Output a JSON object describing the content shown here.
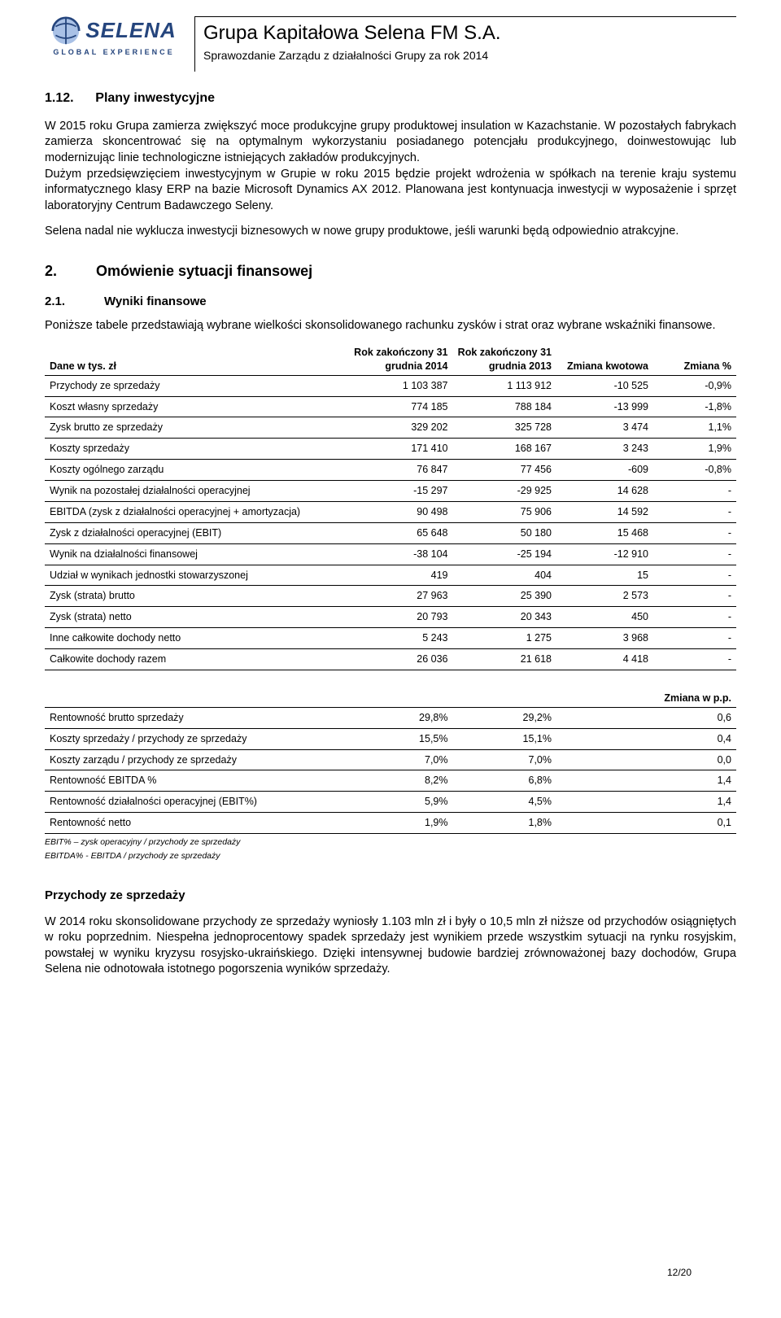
{
  "header": {
    "logo_text": "SELENA",
    "logo_sub": "GLOBAL EXPERIENCE",
    "title": "Grupa Kapitałowa Selena FM S.A.",
    "subtitle": "Sprawozdanie Zarządu z działalności Grupy za rok 2014",
    "logo_colors": {
      "blue": "#25457d",
      "light": "#a9c1e6"
    }
  },
  "s112": {
    "num": "1.12.",
    "title": "Plany inwestycyjne",
    "p1": "W 2015 roku Grupa zamierza zwiększyć moce produkcyjne grupy produktowej insulation w Kazachstanie. W pozostałych fabrykach zamierza skoncentrować się na optymalnym wykorzystaniu posiadanego potencjału produkcyjnego, doinwestowując lub modernizując linie technologiczne istniejących zakładów produkcyjnych.",
    "p2": "Dużym przedsięwzięciem inwestycyjnym w Grupie w roku 2015 będzie projekt wdrożenia w spółkach na terenie kraju systemu informatycznego klasy ERP na bazie Microsoft Dynamics AX 2012. Planowana jest kontynuacja inwestycji w wyposażenie i sprzęt laboratoryjny Centrum Badawczego Seleny.",
    "p3": "Selena nadal nie wyklucza inwestycji biznesowych w nowe grupy produktowe, jeśli warunki będą odpowiednio atrakcyjne."
  },
  "s2": {
    "num": "2.",
    "title": "Omówienie sytuacji finansowej"
  },
  "s21": {
    "num": "2.1.",
    "title": "Wyniki finansowe",
    "intro": "Poniższe tabele przedstawiają wybrane wielkości skonsolidowanego rachunku zysków i strat oraz wybrane wskaźniki finansowe."
  },
  "table1": {
    "unit_label": "Dane w tys. zł",
    "cols": [
      "Rok zakończony 31 grudnia 2014",
      "Rok zakończony 31 grudnia 2013",
      "Zmiana kwotowa",
      "Zmiana %"
    ],
    "rows": [
      {
        "label": "Przychody ze sprzedaży",
        "v": [
          "1 103 387",
          "1 113 912",
          "-10 525",
          "-0,9%"
        ]
      },
      {
        "label": "Koszt własny sprzedaży",
        "v": [
          "774 185",
          "788 184",
          "-13 999",
          "-1,8%"
        ]
      },
      {
        "label": "Zysk brutto ze sprzedaży",
        "v": [
          "329 202",
          "325 728",
          "3 474",
          "1,1%"
        ]
      },
      {
        "label": "Koszty sprzedaży",
        "v": [
          "171 410",
          "168 167",
          "3 243",
          "1,9%"
        ]
      },
      {
        "label": "Koszty ogólnego zarządu",
        "v": [
          "76 847",
          "77 456",
          "-609",
          "-0,8%"
        ]
      },
      {
        "label": "Wynik na pozostałej działalności operacyjnej",
        "v": [
          "-15 297",
          "-29 925",
          "14 628",
          "-"
        ]
      },
      {
        "label": "EBITDA (zysk z działalności operacyjnej + amortyzacja)",
        "v": [
          "90 498",
          "75 906",
          "14 592",
          "-"
        ]
      },
      {
        "label": "Zysk z działalności operacyjnej (EBIT)",
        "v": [
          "65 648",
          "50 180",
          "15 468",
          "-"
        ]
      },
      {
        "label": "Wynik na działalności finansowej",
        "v": [
          "-38 104",
          "-25 194",
          "-12 910",
          "-"
        ]
      },
      {
        "label": "Udział w wynikach jednostki stowarzyszonej",
        "v": [
          "419",
          "404",
          "15",
          "-"
        ]
      },
      {
        "label": "Zysk (strata) brutto",
        "v": [
          "27 963",
          "25 390",
          "2 573",
          "-"
        ]
      },
      {
        "label": "Zysk (strata) netto",
        "v": [
          "20 793",
          "20 343",
          "450",
          "-"
        ]
      },
      {
        "label": "Inne całkowite dochody netto",
        "v": [
          "5 243",
          "1 275",
          "3 968",
          "-"
        ]
      },
      {
        "label": "Całkowite dochody razem",
        "v": [
          "26 036",
          "21 618",
          "4 418",
          "-"
        ]
      }
    ]
  },
  "table2": {
    "change_header": "Zmiana w p.p.",
    "rows": [
      {
        "label": "Rentowność brutto sprzedaży",
        "v": [
          "29,8%",
          "29,2%",
          "0,6"
        ]
      },
      {
        "label": "Koszty sprzedaży / przychody ze sprzedaży",
        "v": [
          "15,5%",
          "15,1%",
          "0,4"
        ]
      },
      {
        "label": "Koszty zarządu / przychody ze sprzedaży",
        "v": [
          "7,0%",
          "7,0%",
          "0,0"
        ]
      },
      {
        "label": "Rentowność EBITDA %",
        "v": [
          "8,2%",
          "6,8%",
          "1,4"
        ]
      },
      {
        "label": "Rentowność działalności operacyjnej (EBIT%)",
        "v": [
          "5,9%",
          "4,5%",
          "1,4"
        ]
      },
      {
        "label": "Rentowność netto",
        "v": [
          "1,9%",
          "1,8%",
          "0,1"
        ]
      }
    ],
    "footnotes": [
      "EBIT% – zysk operacyjny / przychody ze sprzedaży",
      "EBITDA% - EBITDA / przychody ze sprzedaży"
    ]
  },
  "revenue": {
    "heading": "Przychody ze sprzedaży",
    "p": "W 2014 roku skonsolidowane przychody ze sprzedaży wyniosły 1.103 mln zł i były o 10,5 mln zł niższe od przychodów osiągniętych w roku poprzednim. Niespełna jednoprocentowy spadek sprzedaży jest wynikiem przede wszystkim sytuacji na rynku rosyjskim, powstałej w wyniku kryzysu rosyjsko-ukraińskiego. Dzięki intensywnej budowie bardziej zrównoważonej bazy dochodów, Grupa Selena nie odnotowała istotnego pogorszenia wyników sprzedaży."
  },
  "pagenum": "12/20"
}
